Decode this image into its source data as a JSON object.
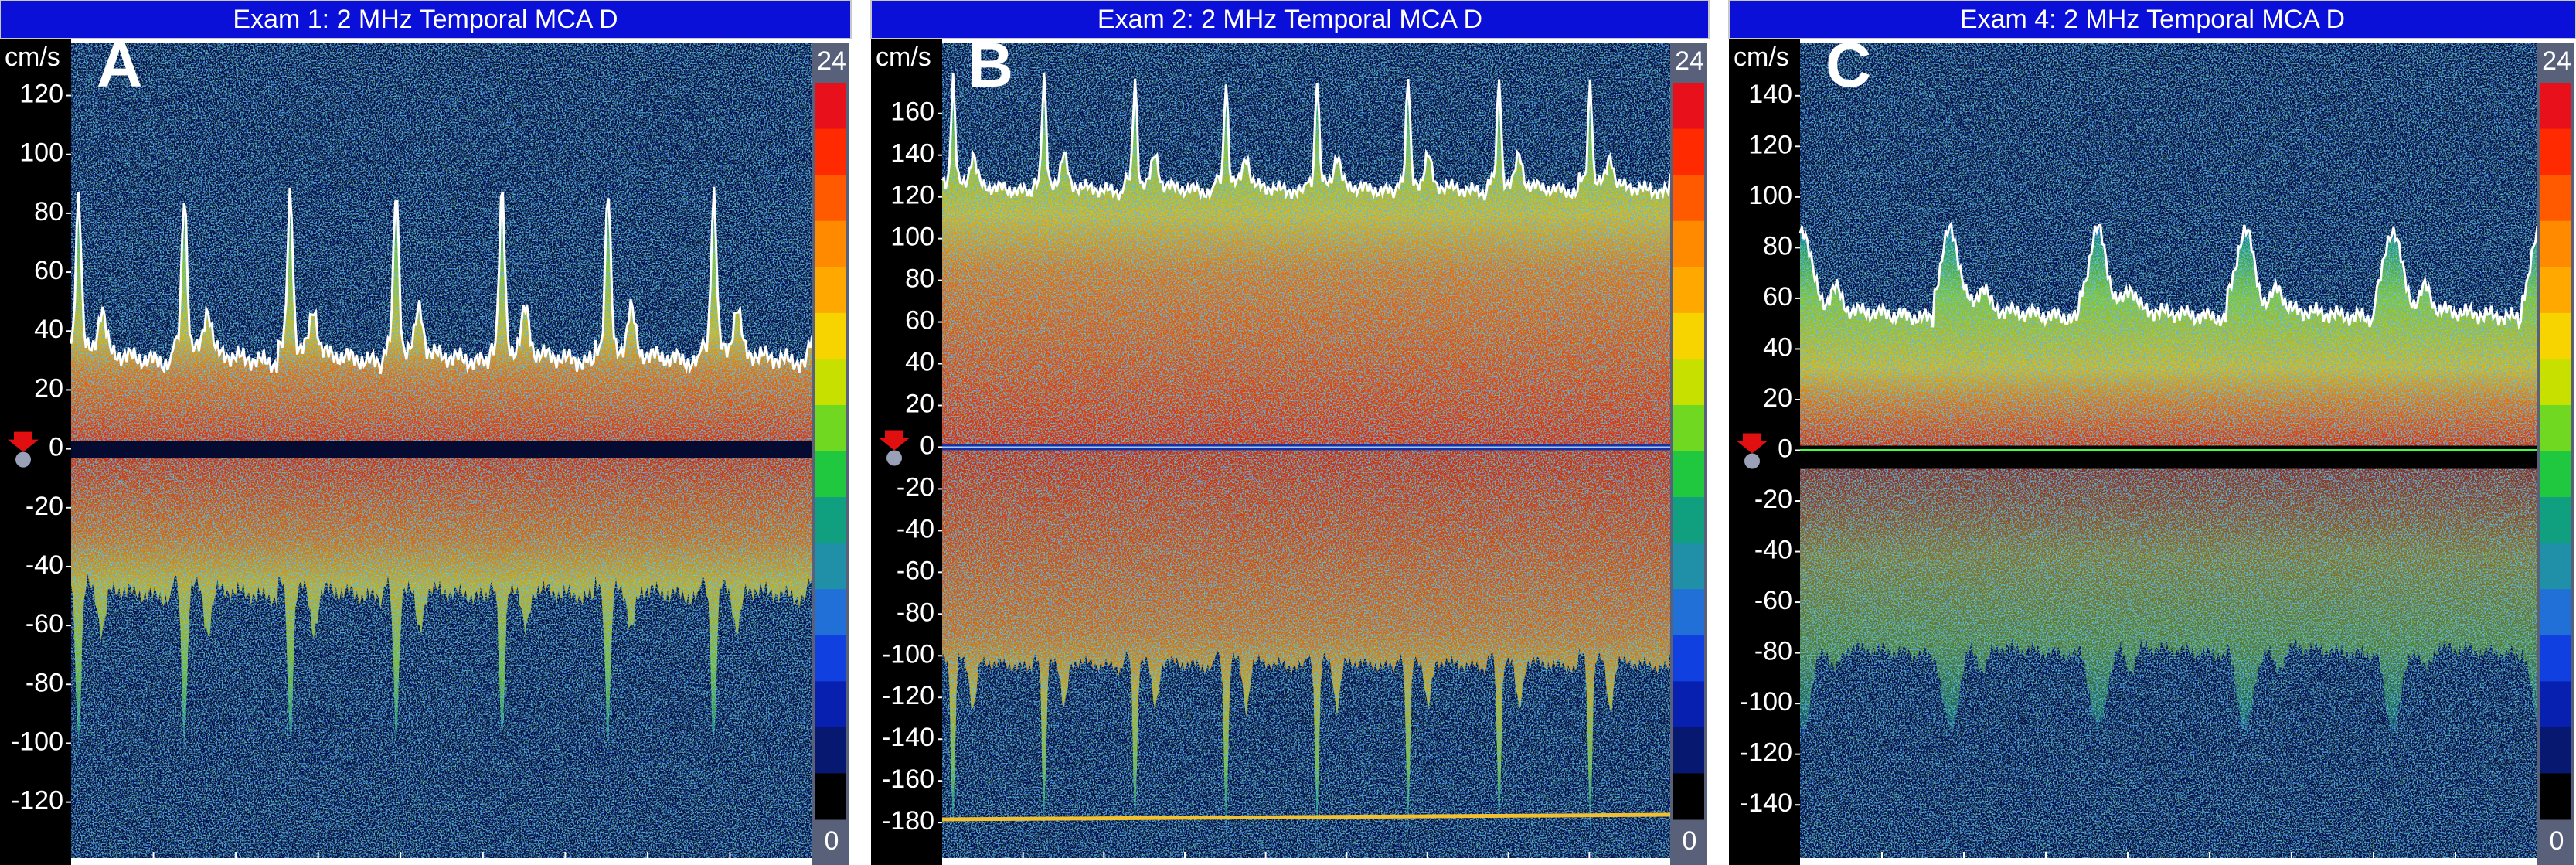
{
  "panels": [
    {
      "title": "Exam 1: 2 MHz Temporal MCA D",
      "label": "A",
      "unit": "cm/s",
      "ylim": [
        -139,
        138
      ],
      "yticks": [
        120,
        100,
        80,
        60,
        40,
        20,
        0,
        -20,
        -40,
        -60,
        -80,
        -100,
        -120
      ],
      "scale_max": 24,
      "scale_min": 0
    },
    {
      "title": "Exam 2: 2 MHz Temporal MCA D",
      "label": "B",
      "unit": "cm/s",
      "ylim": [
        -197,
        194
      ],
      "yticks": [
        160,
        140,
        120,
        100,
        80,
        60,
        40,
        20,
        0,
        -20,
        -40,
        -60,
        -80,
        -100,
        -120,
        -140,
        -160,
        -180
      ],
      "scale_max": 24,
      "scale_min": 0
    },
    {
      "title": "Exam 4: 2 MHz Temporal MCA D",
      "label": "C",
      "unit": "cm/s",
      "ylim": [
        -161,
        161
      ],
      "yticks": [
        140,
        120,
        100,
        80,
        60,
        40,
        20,
        0,
        -20,
        -40,
        -60,
        -80,
        -100,
        -120,
        -140
      ],
      "scale_max": 24,
      "scale_min": 0
    }
  ]
}
